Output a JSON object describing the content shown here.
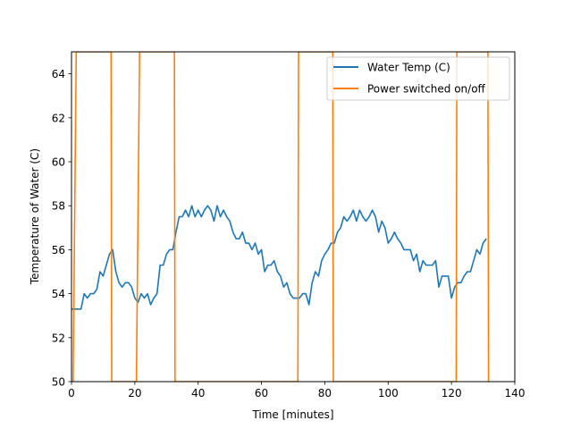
{
  "chart_data": {
    "type": "line",
    "title": "",
    "xlabel": "Time [minutes]",
    "ylabel": "Temperature of Water (C)",
    "xlim": [
      0,
      140
    ],
    "ylim": [
      50,
      65
    ],
    "xticks": [
      0,
      20,
      40,
      60,
      80,
      100,
      120,
      140
    ],
    "yticks": [
      50,
      52,
      54,
      56,
      58,
      60,
      62,
      64
    ],
    "grid": false,
    "legend_position": "upper right",
    "series": [
      {
        "name": "Water Temp (C)",
        "color": "#1f77b4",
        "points": [
          [
            0,
            53.3
          ],
          [
            1,
            53.3
          ],
          [
            2,
            53.3
          ],
          [
            3,
            53.3
          ],
          [
            4,
            54.0
          ],
          [
            5,
            53.8
          ],
          [
            6,
            54.0
          ],
          [
            7,
            54.0
          ],
          [
            8,
            54.2
          ],
          [
            9,
            55.0
          ],
          [
            10,
            54.8
          ],
          [
            11,
            55.3
          ],
          [
            12,
            55.8
          ],
          [
            13,
            56.0
          ],
          [
            14,
            55.0
          ],
          [
            15,
            54.5
          ],
          [
            16,
            54.3
          ],
          [
            17,
            54.5
          ],
          [
            18,
            54.5
          ],
          [
            19,
            54.3
          ],
          [
            20,
            53.8
          ],
          [
            21,
            53.6
          ],
          [
            22,
            54.0
          ],
          [
            23,
            53.8
          ],
          [
            24,
            54.0
          ],
          [
            25,
            53.5
          ],
          [
            26,
            53.8
          ],
          [
            27,
            54.0
          ],
          [
            28,
            55.3
          ],
          [
            29,
            55.3
          ],
          [
            30,
            55.8
          ],
          [
            31,
            56.0
          ],
          [
            32,
            56.0
          ],
          [
            33,
            56.8
          ],
          [
            34,
            57.5
          ],
          [
            35,
            57.5
          ],
          [
            36,
            57.8
          ],
          [
            37,
            57.5
          ],
          [
            38,
            58.0
          ],
          [
            39,
            57.5
          ],
          [
            40,
            57.8
          ],
          [
            41,
            57.5
          ],
          [
            42,
            57.8
          ],
          [
            43,
            58.0
          ],
          [
            44,
            57.8
          ],
          [
            45,
            57.3
          ],
          [
            46,
            58.0
          ],
          [
            47,
            57.5
          ],
          [
            48,
            57.8
          ],
          [
            49,
            57.5
          ],
          [
            50,
            57.3
          ],
          [
            51,
            56.8
          ],
          [
            52,
            56.5
          ],
          [
            53,
            56.5
          ],
          [
            54,
            56.8
          ],
          [
            55,
            56.3
          ],
          [
            56,
            56.3
          ],
          [
            57,
            56.0
          ],
          [
            58,
            56.3
          ],
          [
            59,
            55.8
          ],
          [
            60,
            56.0
          ],
          [
            61,
            55.0
          ],
          [
            62,
            55.3
          ],
          [
            63,
            55.3
          ],
          [
            64,
            55.5
          ],
          [
            65,
            55.0
          ],
          [
            66,
            54.8
          ],
          [
            67,
            54.3
          ],
          [
            68,
            54.5
          ],
          [
            69,
            54.0
          ],
          [
            70,
            53.8
          ],
          [
            71,
            53.8
          ],
          [
            72,
            53.8
          ],
          [
            73,
            54.0
          ],
          [
            74,
            54.0
          ],
          [
            75,
            53.5
          ],
          [
            76,
            54.5
          ],
          [
            77,
            55.0
          ],
          [
            78,
            54.8
          ],
          [
            79,
            55.5
          ],
          [
            80,
            55.8
          ],
          [
            81,
            56.0
          ],
          [
            82,
            56.3
          ],
          [
            83,
            56.3
          ],
          [
            84,
            56.8
          ],
          [
            85,
            57.0
          ],
          [
            86,
            57.5
          ],
          [
            87,
            57.3
          ],
          [
            88,
            57.5
          ],
          [
            89,
            57.8
          ],
          [
            90,
            57.3
          ],
          [
            91,
            57.8
          ],
          [
            92,
            57.5
          ],
          [
            93,
            57.3
          ],
          [
            94,
            57.5
          ],
          [
            95,
            57.8
          ],
          [
            96,
            57.5
          ],
          [
            97,
            56.8
          ],
          [
            98,
            57.3
          ],
          [
            99,
            57.0
          ],
          [
            100,
            56.3
          ],
          [
            101,
            56.5
          ],
          [
            102,
            56.8
          ],
          [
            103,
            56.5
          ],
          [
            104,
            56.3
          ],
          [
            105,
            56.0
          ],
          [
            106,
            56.0
          ],
          [
            107,
            56.0
          ],
          [
            108,
            55.5
          ],
          [
            109,
            55.8
          ],
          [
            110,
            55.0
          ],
          [
            111,
            55.5
          ],
          [
            112,
            55.3
          ],
          [
            113,
            55.3
          ],
          [
            114,
            55.3
          ],
          [
            115,
            55.5
          ],
          [
            116,
            54.3
          ],
          [
            117,
            54.8
          ],
          [
            118,
            54.8
          ],
          [
            119,
            54.8
          ],
          [
            120,
            53.8
          ],
          [
            121,
            54.3
          ],
          [
            122,
            54.5
          ],
          [
            123,
            54.5
          ],
          [
            124,
            54.8
          ],
          [
            125,
            55.0
          ],
          [
            126,
            55.0
          ],
          [
            127,
            55.5
          ],
          [
            128,
            56.0
          ],
          [
            129,
            55.8
          ],
          [
            130,
            56.3
          ],
          [
            131,
            56.5
          ]
        ]
      },
      {
        "name": "Power switched on/off",
        "color": "#ff7f0e",
        "points": [
          [
            0.5,
            50
          ],
          [
            1.5,
            65
          ],
          [
            12.5,
            65
          ],
          [
            12.7,
            50
          ],
          [
            20.5,
            50
          ],
          [
            21.5,
            65
          ],
          [
            32.5,
            65
          ],
          [
            32.7,
            50
          ],
          [
            71.5,
            50
          ],
          [
            71.7,
            65
          ],
          [
            82.5,
            65
          ],
          [
            82.7,
            50
          ],
          [
            121.5,
            50
          ],
          [
            121.7,
            65
          ],
          [
            131.5,
            65
          ],
          [
            131.7,
            50
          ]
        ]
      }
    ]
  }
}
